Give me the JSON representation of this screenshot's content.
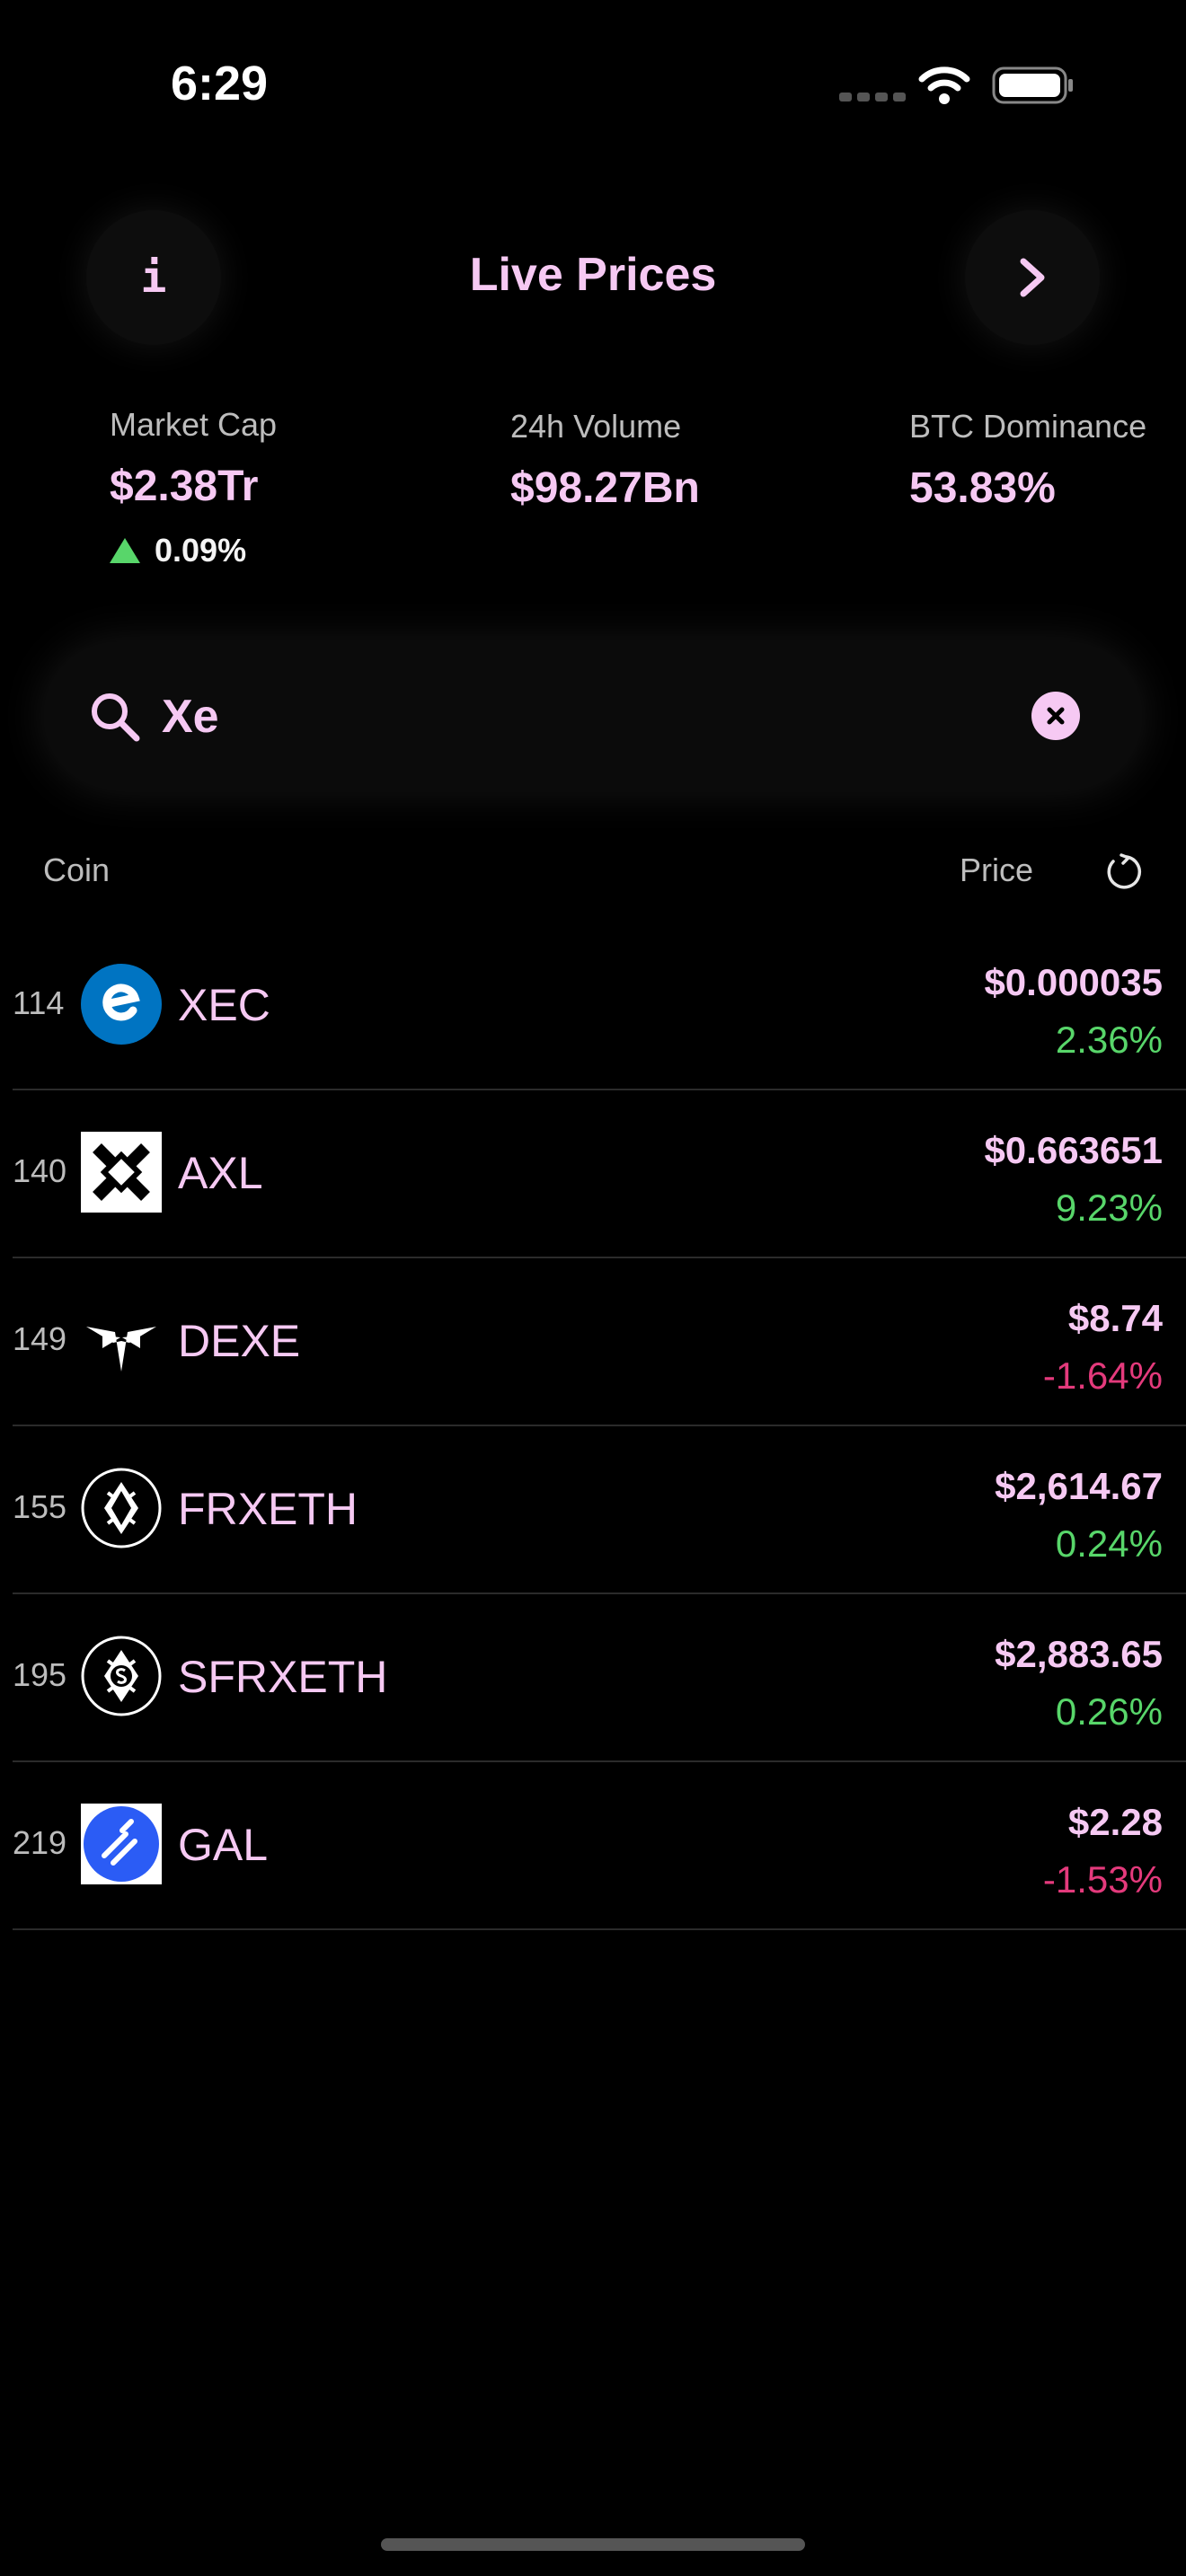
{
  "status_bar": {
    "time": "6:29"
  },
  "header": {
    "title": "Live Prices",
    "info_icon": "i"
  },
  "stats": {
    "market_cap": {
      "label": "Market Cap",
      "value": "$2.38Tr",
      "change": "0.09%",
      "direction": "up"
    },
    "volume": {
      "label": "24h Volume",
      "value": "$98.27Bn"
    },
    "dominance": {
      "label": "BTC Dominance",
      "value": "53.83%"
    }
  },
  "search": {
    "value": "Xe"
  },
  "list_header": {
    "coin": "Coin",
    "price": "Price"
  },
  "coins": [
    {
      "rank": "114",
      "symbol": "XEC",
      "price": "$0.000035",
      "change": "2.36%",
      "direction": "up",
      "icon": "ecash-icon"
    },
    {
      "rank": "140",
      "symbol": "AXL",
      "price": "$0.663651",
      "change": "9.23%",
      "direction": "up",
      "icon": "axelar-icon"
    },
    {
      "rank": "149",
      "symbol": "DEXE",
      "price": "$8.74",
      "change": "-1.64%",
      "direction": "down",
      "icon": "dexe-icon"
    },
    {
      "rank": "155",
      "symbol": "FRXETH",
      "price": "$2,614.67",
      "change": "0.24%",
      "direction": "up",
      "icon": "frxeth-icon"
    },
    {
      "rank": "195",
      "symbol": "SFRXETH",
      "price": "$2,883.65",
      "change": "0.26%",
      "direction": "up",
      "icon": "sfrxeth-icon"
    },
    {
      "rank": "219",
      "symbol": "GAL",
      "price": "$2.28",
      "change": "-1.53%",
      "direction": "down",
      "icon": "galxe-icon"
    }
  ],
  "colors": {
    "accent": "#f6c9f3",
    "positive": "#58d66a",
    "negative": "#e43a7c",
    "background": "#000000"
  }
}
